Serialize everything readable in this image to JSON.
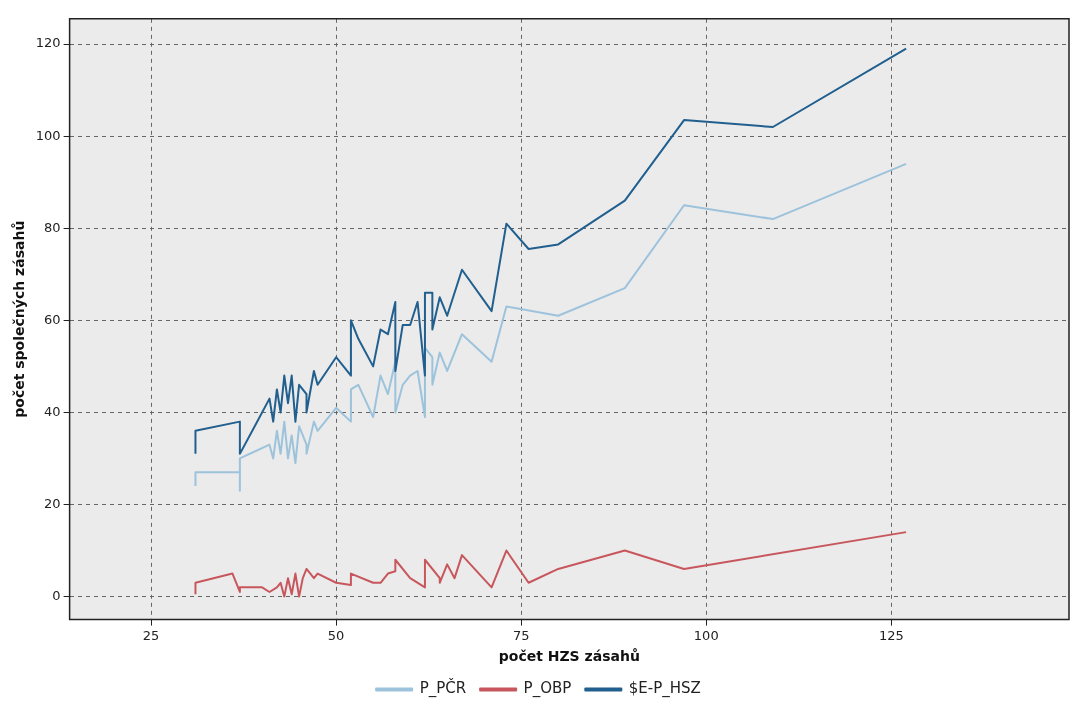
{
  "chart_data": {
    "type": "line",
    "xlabel": "počet HZS zásahů",
    "ylabel": "počet společných zásahů",
    "xlim": [
      14,
      149
    ],
    "xticks": [
      25,
      50,
      75,
      100,
      125
    ],
    "ylim": [
      -5,
      125.5
    ],
    "yticks": [
      0,
      20,
      40,
      60,
      80,
      100,
      120
    ],
    "grid": true,
    "legend": "bottom",
    "marker": "none",
    "line_style": "solid",
    "series": [
      {
        "name": "P_PČR",
        "color": "#9dc3dc",
        "x": [
          31,
          31,
          37,
          37,
          37,
          41,
          41.5,
          42,
          42.5,
          43,
          43.5,
          44,
          44.5,
          45,
          46,
          46,
          47,
          47.5,
          50,
          52,
          52,
          53,
          55,
          56,
          57,
          58,
          58,
          59,
          60,
          61,
          62,
          62,
          63,
          63,
          64,
          65,
          67,
          71,
          73,
          80,
          89,
          97,
          109,
          127
        ],
        "values": [
          24,
          27,
          27,
          23,
          30,
          33,
          30,
          36,
          31,
          38,
          30,
          35,
          29,
          37,
          33,
          31,
          38,
          36,
          41,
          38,
          45,
          46,
          39,
          48,
          44,
          51,
          40,
          46,
          48,
          49,
          39,
          54,
          52,
          46,
          53,
          49,
          57,
          51,
          63,
          61,
          67,
          85,
          82,
          94
        ]
      },
      {
        "name": "P_OBP",
        "color": "#c8575d",
        "x": [
          31,
          31,
          36,
          37,
          37,
          40,
          41,
          42,
          42.5,
          43,
          43.5,
          44,
          44.5,
          45,
          45.5,
          46,
          47,
          47.5,
          50,
          52,
          52,
          55,
          56,
          57,
          58,
          58,
          60,
          62,
          62,
          64,
          64,
          65,
          66,
          67,
          71,
          73,
          76,
          80,
          89,
          97,
          127
        ],
        "values": [
          0.5,
          3,
          5,
          1,
          2,
          2,
          1,
          2,
          3,
          0,
          4,
          0.5,
          5,
          0,
          4,
          6,
          4,
          5,
          3,
          2.5,
          5,
          3,
          3,
          5,
          5.5,
          8,
          4,
          2,
          8,
          4,
          3,
          7,
          4,
          9,
          2,
          10,
          3,
          6,
          10,
          6,
          14
        ]
      },
      {
        "name": "$E-P_HSZ",
        "color": "#215f8e",
        "x": [
          31,
          31,
          37,
          37,
          41,
          41.5,
          42,
          42.5,
          43,
          43.5,
          44,
          44.5,
          45,
          46,
          46,
          47,
          47.5,
          50,
          52,
          52,
          53,
          55,
          56,
          57,
          58,
          58,
          59,
          60,
          61,
          62,
          62,
          63,
          63,
          64,
          65,
          67,
          71,
          73,
          76,
          80,
          89,
          97,
          109,
          127
        ],
        "values": [
          31,
          36,
          38,
          31,
          43,
          38,
          45,
          40,
          48,
          42,
          48,
          38,
          46,
          44,
          40,
          49,
          46,
          52,
          48,
          60,
          56,
          50,
          58,
          57,
          64,
          49,
          59,
          59,
          64,
          48,
          66,
          66,
          58,
          65,
          61,
          71,
          62,
          81,
          75.5,
          76.5,
          86,
          103.5,
          102,
          119
        ]
      }
    ]
  }
}
